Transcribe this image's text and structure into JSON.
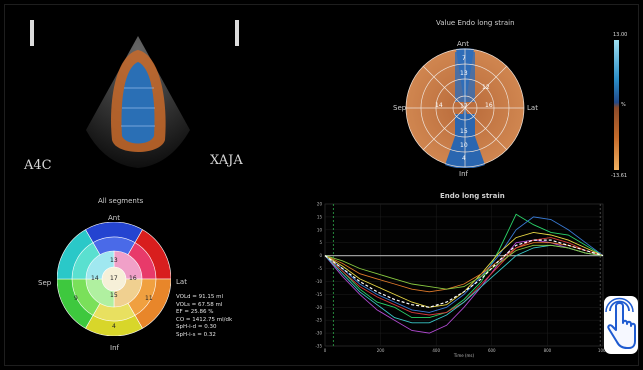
{
  "echo": {
    "view_label_left": "A4C",
    "view_label_right": "XAJA"
  },
  "bullseye_top": {
    "title": "Value Endo long strain",
    "labels": {
      "ant": "Ant",
      "sep": "Sep",
      "lat": "Lat",
      "inf": "Inf"
    },
    "segments_visible": [
      "7",
      "13",
      "12",
      "14",
      "17",
      "16",
      "15",
      "10",
      "4"
    ],
    "colorbar": {
      "top": "13.00",
      "bottom": "-13.61",
      "mid": "%"
    }
  },
  "bullseye_bottom": {
    "title": "All segments",
    "labels": {
      "ant": "Ant",
      "sep": "Sep",
      "lat": "Lat",
      "inf": "Inf"
    },
    "segments_visible": [
      "13",
      "14",
      "17",
      "16",
      "15",
      "9",
      "11",
      "4"
    ]
  },
  "stats": [
    "VOLd = 91.15 ml",
    "VOLs = 67.58 ml",
    "EF = 25.86 %",
    "CO = 1412.75 ml/dk",
    "SpH-i-d = 0.30",
    "SpH-i-s = 0.32"
  ],
  "chart_data": {
    "type": "line",
    "title": "Endo long strain",
    "xlabel": "Time (ms)",
    "ylabel": "",
    "ylim": [
      -35,
      20
    ],
    "xlim": [
      0,
      1000
    ],
    "yticks": [
      "20",
      "15",
      "10",
      "5",
      "0",
      "-5",
      "-10",
      "-15",
      "-20",
      "-25",
      "-30",
      "-35"
    ],
    "xticks": [
      "0",
      "200",
      "400",
      "600",
      "800",
      "1000"
    ],
    "series": [
      {
        "values": [
          0,
          -6,
          -13,
          -18,
          -20,
          -24,
          -24,
          -22,
          -17,
          -10,
          2,
          16,
          12,
          9,
          8,
          4,
          0
        ],
        "color": "#2bd36a"
      },
      {
        "values": [
          0,
          -5,
          -11,
          -15,
          -18,
          -21,
          -22,
          -20,
          -15,
          -8,
          0,
          10,
          15,
          14,
          10,
          5,
          0
        ],
        "color": "#3a7bd5"
      },
      {
        "values": [
          0,
          -4,
          -9,
          -12,
          -15,
          -18,
          -20,
          -19,
          -14,
          -7,
          1,
          7,
          9,
          8,
          6,
          3,
          0
        ],
        "color": "#e8d845"
      },
      {
        "values": [
          0,
          -8,
          -15,
          -21,
          -25,
          -29,
          -30,
          -27,
          -20,
          -12,
          -3,
          5,
          6,
          5,
          3,
          1,
          0
        ],
        "color": "#b04ad0"
      },
      {
        "values": [
          0,
          -3,
          -7,
          -9,
          -11,
          -13,
          -14,
          -13,
          -11,
          -7,
          -2,
          3,
          5,
          5,
          4,
          2,
          0
        ],
        "color": "#e07a2a"
      },
      {
        "values": [
          0,
          -6,
          -12,
          -16,
          -19,
          -22,
          -23,
          -22,
          -18,
          -11,
          -4,
          3,
          6,
          7,
          5,
          2,
          0
        ],
        "color": "#d63a3a"
      },
      {
        "values": [
          0,
          -7,
          -14,
          -19,
          -24,
          -26,
          -26,
          -23,
          -18,
          -12,
          -6,
          0,
          3,
          4,
          3,
          1,
          0
        ],
        "color": "#3ac8c8"
      },
      {
        "values": [
          0,
          -2,
          -5,
          -7,
          -9,
          -11,
          -12,
          -13,
          -12,
          -8,
          -3,
          2,
          4,
          4,
          3,
          1,
          0
        ],
        "color": "#88c840"
      },
      {
        "values": [
          0,
          -5,
          -10,
          -14,
          -17,
          -19,
          -20,
          -18,
          -14,
          -9,
          -2,
          4,
          6,
          6,
          4,
          2,
          0
        ],
        "color": "#ffffff",
        "dashed": true
      }
    ]
  },
  "colors": {
    "echo_myocardium": "#c86a2a",
    "echo_cavity": "#2a6fb5",
    "bullseye_base": "#c4784a",
    "bullseye_blue": "#2a66b0"
  }
}
